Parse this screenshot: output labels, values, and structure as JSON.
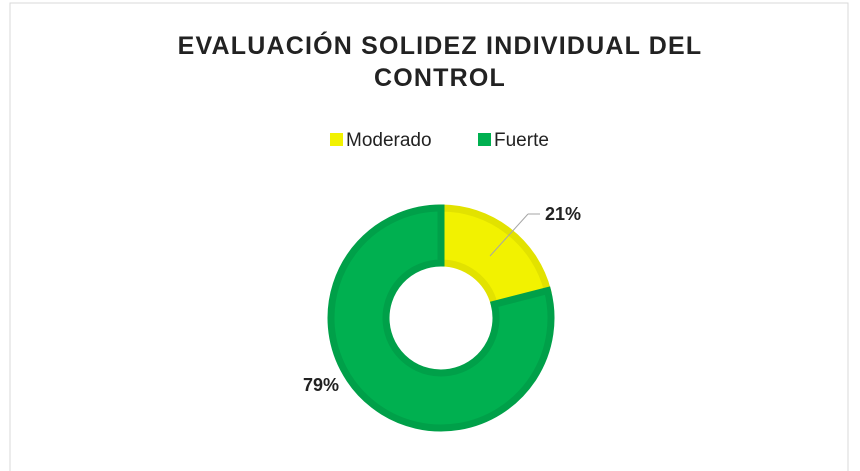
{
  "chart_data": {
    "type": "doughnut",
    "title": "EVALUACIÓN SOLIDEZ INDIVIDUAL DEL CONTROL",
    "categories": [
      "Moderado",
      "Fuerte"
    ],
    "values": [
      21,
      79
    ],
    "value_labels": [
      "21%",
      "79%"
    ],
    "colors": [
      "#f2f200",
      "#00b050"
    ],
    "legend": "top"
  }
}
